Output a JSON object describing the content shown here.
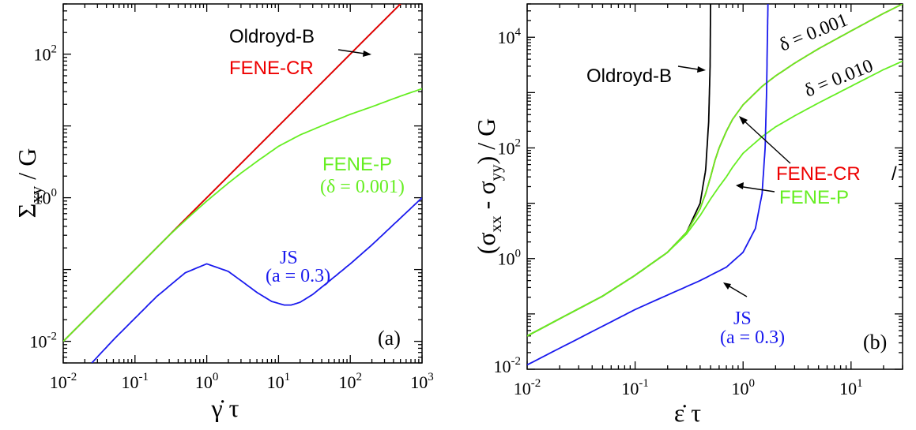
{
  "colors": {
    "oldroyd_b": "#000000",
    "fene_cr": "#ee0000",
    "fene_p": "#66ee22",
    "js": "#1a1aee"
  },
  "chart_data": [
    {
      "type": "line",
      "panel_label": "(a)",
      "ylabel": "Σxy / G",
      "ylabel_base": "Σ",
      "ylabel_sub": "xy",
      "ylabel_tail": " / G",
      "xlabel": "γ̇ τ",
      "x_scale": "log",
      "y_scale": "log",
      "xlim": [
        0.01,
        1000
      ],
      "ylim": [
        0.005,
        500
      ],
      "x_ticks": [
        {
          "base": "10",
          "exp": "-2"
        },
        {
          "base": "10",
          "exp": "-1"
        },
        {
          "base": "10",
          "exp": "0"
        },
        {
          "base": "10",
          "exp": "1"
        },
        {
          "base": "10",
          "exp": "2"
        },
        {
          "base": "10",
          "exp": "3"
        }
      ],
      "y_ticks": [
        {
          "base": "10",
          "exp": "-2"
        },
        {
          "base": "10",
          "exp": "0"
        },
        {
          "base": "10",
          "exp": "2"
        }
      ],
      "annotations": {
        "oldroyd": "Oldroyd-B",
        "fene_cr": "FENE-CR",
        "fene_p": "FENE-P",
        "fene_p_param": "(δ = 0.001)",
        "js": "JS",
        "js_param": "(a = 0.3)"
      },
      "series": [
        {
          "key": "oldroyd_b",
          "x": [
            0.01,
            1000
          ],
          "y": [
            0.01,
            1000
          ]
        },
        {
          "key": "fene_cr",
          "x": [
            0.01,
            1000
          ],
          "y": [
            0.01,
            1000
          ]
        },
        {
          "key": "fene_p",
          "x": [
            0.01,
            0.1,
            0.3,
            0.6,
            1,
            2,
            3,
            5,
            10,
            20,
            50,
            100,
            200,
            500,
            1000
          ],
          "y": [
            0.01,
            0.1,
            0.3,
            0.57,
            0.9,
            1.6,
            2.2,
            3.2,
            5.2,
            7.5,
            11,
            14.5,
            18.5,
            26,
            33
          ]
        },
        {
          "key": "js",
          "x": [
            0.025,
            0.05,
            0.1,
            0.2,
            0.5,
            1,
            2,
            3,
            5,
            8,
            12,
            15,
            20,
            30,
            50,
            100,
            200,
            500,
            1000
          ],
          "y": [
            0.005,
            0.0105,
            0.021,
            0.042,
            0.09,
            0.12,
            0.094,
            0.07,
            0.048,
            0.036,
            0.032,
            0.032,
            0.035,
            0.045,
            0.068,
            0.12,
            0.22,
            0.52,
            1.0
          ]
        }
      ]
    },
    {
      "type": "line",
      "panel_label": "(b)",
      "ylabel": "(σxx - σyy) / G",
      "ylabel_open": "(σ",
      "ylabel_sub1": "xx",
      "ylabel_mid": " - σ",
      "ylabel_sub2": "yy",
      "ylabel_tail": ") / G",
      "xlabel": "ε̇ τ",
      "x_scale": "log",
      "y_scale": "log",
      "xlim": [
        0.01,
        30
      ],
      "ylim": [
        0.01,
        40000
      ],
      "x_ticks": [
        {
          "base": "10",
          "exp": "-2"
        },
        {
          "base": "10",
          "exp": "-1"
        },
        {
          "base": "10",
          "exp": "0"
        },
        {
          "base": "10",
          "exp": "1"
        }
      ],
      "y_ticks": [
        {
          "base": "10",
          "exp": "-2"
        },
        {
          "base": "10",
          "exp": "0"
        },
        {
          "base": "10",
          "exp": "2"
        },
        {
          "base": "10",
          "exp": "4"
        }
      ],
      "annotations": {
        "oldroyd": "Oldroyd-B",
        "delta1": "δ = 0.001",
        "delta2": "δ = 0.010",
        "fene_cr": "FENE-CR",
        "slash": "/",
        "fene_p": "FENE-P",
        "js": "JS",
        "js_param": "(a = 0.3)"
      },
      "series": [
        {
          "key": "oldroyd_b",
          "x": [
            0.01,
            0.05,
            0.1,
            0.2,
            0.3,
            0.4,
            0.45,
            0.48,
            0.495,
            0.5
          ],
          "y": [
            0.04,
            0.21,
            0.5,
            1.3,
            3,
            10,
            40,
            300,
            3000,
            40000
          ]
        },
        {
          "key": "fene_cr",
          "x": [
            0.01,
            0.05,
            0.1,
            0.2,
            0.3,
            0.4,
            0.45,
            0.5,
            0.55,
            0.6,
            0.7,
            0.8,
            1,
            1.5,
            2,
            3,
            5,
            10,
            20,
            30
          ],
          "y": [
            0.04,
            0.21,
            0.5,
            1.3,
            3,
            8,
            15,
            30,
            60,
            100,
            200,
            330,
            600,
            1300,
            2000,
            3400,
            6200,
            13000,
            27000,
            40000
          ]
        },
        {
          "key": "fene_p_001",
          "x": [
            0.01,
            0.05,
            0.1,
            0.2,
            0.3,
            0.4,
            0.45,
            0.5,
            0.55,
            0.6,
            0.7,
            0.8,
            1,
            1.5,
            2,
            3,
            5,
            10,
            20,
            30
          ],
          "y": [
            0.04,
            0.21,
            0.5,
            1.3,
            3,
            8,
            15,
            30,
            60,
            100,
            200,
            330,
            600,
            1300,
            2000,
            3400,
            6200,
            13000,
            27000,
            40000
          ]
        },
        {
          "key": "fene_p_010",
          "x": [
            0.01,
            0.05,
            0.1,
            0.2,
            0.3,
            0.4,
            0.5,
            0.6,
            0.7,
            0.8,
            1,
            1.5,
            2,
            3,
            5,
            10,
            20,
            30
          ],
          "y": [
            0.04,
            0.21,
            0.5,
            1.3,
            2.8,
            6,
            12,
            20,
            30,
            45,
            80,
            160,
            240,
            380,
            650,
            1300,
            2600,
            3700
          ]
        },
        {
          "key": "js",
          "x": [
            0.01,
            0.05,
            0.1,
            0.2,
            0.4,
            0.7,
            1,
            1.3,
            1.5,
            1.6,
            1.65,
            1.68,
            1.7
          ],
          "y": [
            0.012,
            0.06,
            0.12,
            0.22,
            0.4,
            0.7,
            1.3,
            3.5,
            15,
            100,
            1000,
            10000,
            40000
          ]
        }
      ]
    }
  ]
}
